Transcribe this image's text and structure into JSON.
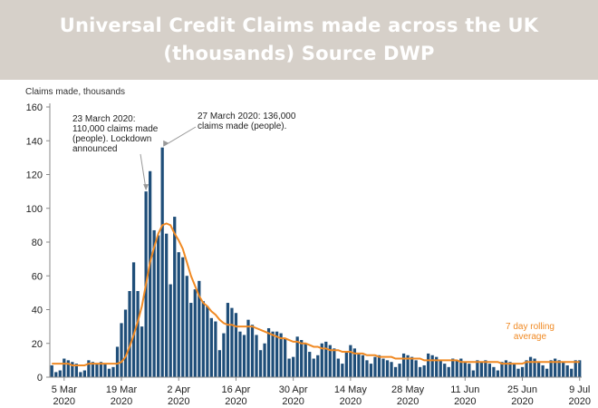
{
  "header": {
    "title_line1": "Universal Credit Claims made across the UK",
    "title_line2": "(thousands) Source DWP"
  },
  "chart_data": {
    "type": "bar",
    "ylabel": "Claims made, thousands",
    "ylim": [
      0,
      160
    ],
    "yticks": [
      "0",
      "20",
      "40",
      "60",
      "80",
      "100",
      "120",
      "140",
      "160"
    ],
    "xticks": [
      {
        "index": 3,
        "line1": "5 Mar",
        "line2": "2020"
      },
      {
        "index": 17,
        "line1": "19 Mar",
        "line2": "2020"
      },
      {
        "index": 31,
        "line1": "2 Apr",
        "line2": "2020"
      },
      {
        "index": 45,
        "line1": "16 Apr",
        "line2": "2020"
      },
      {
        "index": 59,
        "line1": "30 Apr",
        "line2": "2020"
      },
      {
        "index": 73,
        "line1": "14 May",
        "line2": "2020"
      },
      {
        "index": 87,
        "line1": "28 May",
        "line2": "2020"
      },
      {
        "index": 101,
        "line1": "11 Jun",
        "line2": "2020"
      },
      {
        "index": 115,
        "line1": "25 Jun",
        "line2": "2020"
      },
      {
        "index": 129,
        "line1": "9 Jul",
        "line2": "2020"
      }
    ],
    "bar_color": "#1f4e79",
    "line_color": "#f08a24",
    "daily_claims": [
      7,
      3,
      4,
      11,
      10,
      9,
      8,
      3,
      4,
      10,
      9,
      8,
      9,
      8,
      5,
      6,
      18,
      32,
      40,
      51,
      68,
      51,
      30,
      110,
      122,
      87,
      84,
      136,
      85,
      55,
      95,
      74,
      71,
      60,
      44,
      52,
      57,
      45,
      42,
      35,
      33,
      16,
      26,
      44,
      41,
      38,
      27,
      25,
      34,
      31,
      25,
      16,
      20,
      29,
      27,
      27,
      26,
      23,
      11,
      12,
      24,
      22,
      20,
      15,
      11,
      13,
      20,
      21,
      19,
      17,
      11,
      8,
      15,
      19,
      17,
      14,
      13,
      10,
      8,
      12,
      13,
      11,
      10,
      9,
      6,
      8,
      14,
      13,
      12,
      10,
      6,
      7,
      14,
      13,
      12,
      10,
      8,
      6,
      11,
      10,
      11,
      9,
      8,
      4,
      10,
      9,
      10,
      8,
      6,
      4,
      9,
      10,
      9,
      8,
      5,
      6,
      10,
      12,
      11,
      9,
      7,
      5,
      10,
      11,
      10,
      9,
      7,
      5,
      10,
      10
    ],
    "rolling_average": [
      8,
      8,
      8,
      8,
      8,
      7,
      7,
      7,
      7,
      8,
      8,
      8,
      8,
      8,
      8,
      8,
      8,
      9,
      12,
      18,
      25,
      33,
      42,
      55,
      68,
      77,
      85,
      90,
      91,
      90,
      85,
      81,
      76,
      68,
      60,
      54,
      48,
      44,
      42,
      39,
      37,
      34,
      32,
      31,
      31,
      30,
      30,
      30,
      30,
      30,
      29,
      28,
      27,
      26,
      25,
      24,
      23,
      23,
      22,
      21,
      21,
      20,
      20,
      19,
      18,
      18,
      17,
      17,
      16,
      16,
      16,
      15,
      15,
      15,
      14,
      14,
      14,
      13,
      13,
      13,
      12,
      12,
      12,
      12,
      11,
      11,
      11,
      11,
      11,
      11,
      11,
      10,
      10,
      10,
      10,
      10,
      10,
      10,
      10,
      10,
      9,
      9,
      9,
      9,
      9,
      9,
      9,
      9,
      9,
      9,
      8,
      8,
      8,
      8,
      8,
      8,
      9,
      9,
      9,
      9,
      9,
      9,
      9,
      9,
      9,
      9,
      9,
      9,
      9,
      9
    ],
    "series_legend": [
      "7 day rolling",
      "average"
    ],
    "annotations": [
      {
        "index": 23,
        "value": 110,
        "lines": [
          "23 March 2020:",
          "110,000 claims made",
          "(people). Lockdown",
          "announced"
        ]
      },
      {
        "index": 27,
        "value": 136,
        "lines": [
          "27 March 2020: 136,000",
          "claims made (people)."
        ]
      }
    ]
  }
}
